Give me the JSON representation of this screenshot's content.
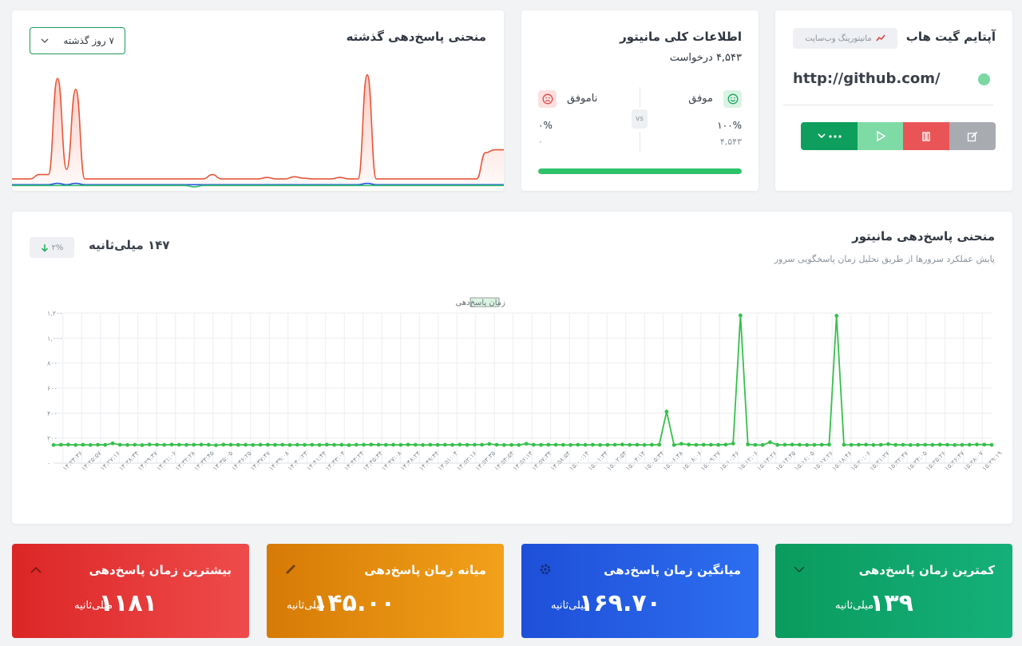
{
  "uptime_card": {
    "title": "آپتایم گیت هاب",
    "type_badge": "مانیتورینگ وب‌سایت",
    "url": "http://github.com/",
    "status_color": "#7bd8a3",
    "icons": {
      "type": "trend-icon",
      "more": "dots-icon",
      "play": "play-icon",
      "pause": "pause-icon",
      "edit": "edit-icon"
    }
  },
  "info_card": {
    "title": "اطلاعات کلی مانیتور",
    "request_count": "۴,۵۴۳ درخواست",
    "success": {
      "label": "موفق",
      "percent": "۱۰۰%",
      "count": "۴,۵۴۳"
    },
    "failure": {
      "label": "ناموفق",
      "percent": "۰%",
      "count": "۰"
    },
    "vs_label": "vs",
    "success_ratio": 1.0
  },
  "curve_card": {
    "title": "منحنی پاسخ‌دهی گذشته",
    "range_select": "۷ روز گذشته"
  },
  "big_chart": {
    "title": "منحنی پاسخ‌دهی مانیتور",
    "subtitle": "پایش عملکرد سرورها از طریق تحلیل زمان پاسخگویی سرور",
    "current_value": "۱۴۷ میلی‌ثانیه",
    "change": "۲%",
    "legend": "زمان پاسخ‌دهی"
  },
  "chart_data": [
    {
      "type": "line",
      "title": "منحنی پاسخ‌دهی مانیتور",
      "legend": "زمان پاسخ‌دهی",
      "ylim": [
        0,
        1200
      ],
      "yticks": [
        "۰",
        "۲۰۰",
        "۴۰۰",
        "۶۰۰",
        "۸۰۰",
        "۱,۰۰۰",
        "۱,۲۰۰"
      ],
      "ytick_values": [
        0,
        200,
        400,
        600,
        800,
        1000,
        1200
      ],
      "x_tick_labels": [
        "۱۴:۲۴:۳۶",
        "۱۴:۲۵:۵۷",
        "۱۴:۲۷:۱۶",
        "۱۴:۲۸:۳۴",
        "۱۴:۲۹:۴۷",
        "۱۴:۳۱:۰۶",
        "۱۴:۳۲:۲۸",
        "۱۴:۳۳:۴۵",
        "۱۴:۳۵:۰۵",
        "۱۴:۳۶:۲۵",
        "۱۴:۳۷:۴۷",
        "۱۴:۳۹:۰۸",
        "۱۴:۴۰:۲۳",
        "۱۴:۴۱:۴۴",
        "۱۴:۴۳:۰۴",
        "۱۴:۴۴:۲۴",
        "۱۴:۴۵:۴۴",
        "۱۴:۴۷:۰۸",
        "۱۴:۴۸:۲۴",
        "۱۴:۴۹:۴۴",
        "۱۴:۵۱:۰۴",
        "۱۴:۵۲:۱۶",
        "۱۴:۵۳:۳۵",
        "۱۴:۵۴:۵۴",
        "۱۴:۵۶:۱۴",
        "۱۴:۵۷:۳۴",
        "۱۴:۵۸:۵۴",
        "۱۵:۰۰:۱۴",
        "۱۵:۰۱:۳۴",
        "۱۵:۰۲:۵۴",
        "۱۵:۰۴:۱۴",
        "۱۵:۰۵:۳۴",
        "۱۵:۰۶:۴۸",
        "۱۵:۰۸:۰۶",
        "۱۵:۰۹:۲۷",
        "۱۵:۱۰:۴۶",
        "۱۵:۱۲:۰۶",
        "۱۵:۱۳:۲۶",
        "۱۵:۱۴:۴۵",
        "۱۵:۱۶:۰۵",
        "۱۵:۱۷:۲۶",
        "۱۵:۱۸:۴۶",
        "۱۵:۲۰:۰۶",
        "۱۵:۲۱:۲۷",
        "۱۵:۲۲:۴۷",
        "۱۵:۲۴:۰۵",
        "۱۵:۲۵:۲۶",
        "۱۵:۲۶:۴۷",
        "۱۵:۲۸:۰۷",
        "۱۵:۲۹:۱۹"
      ],
      "values": [
        145,
        147,
        148,
        145,
        147,
        145,
        147,
        146,
        158,
        147,
        145,
        147,
        144,
        149,
        147,
        146,
        148,
        147,
        146,
        147,
        148,
        147,
        143,
        148,
        147,
        146,
        147,
        145,
        147,
        147,
        146,
        147,
        145,
        147,
        146,
        147,
        145,
        148,
        146,
        147,
        144,
        147,
        147,
        148,
        147,
        146,
        147,
        146,
        148,
        147,
        145,
        147,
        146,
        147,
        146,
        148,
        146,
        147,
        147,
        153,
        147,
        145,
        146,
        145,
        155,
        147,
        146,
        147,
        147,
        146,
        145,
        147,
        146,
        147,
        145,
        146,
        147,
        149,
        146,
        147,
        145,
        147,
        147,
        412,
        145,
        155,
        148,
        146,
        147,
        147,
        146,
        148,
        157,
        1181,
        150,
        146,
        145,
        167,
        146,
        147,
        148,
        147,
        145,
        146,
        147,
        148,
        1178,
        147,
        146,
        147,
        148,
        145,
        147,
        152,
        146,
        147,
        145,
        146,
        147,
        146,
        148,
        147,
        145,
        146,
        147,
        149,
        148,
        146
      ]
    },
    {
      "type": "area",
      "title": "منحنی پاسخ‌دهی گذشته",
      "series": [
        {
          "name": "",
          "color": "#e8563a",
          "values": [
            120,
            120,
            120,
            180,
            180,
            1500,
            250,
            1350,
            120,
            120,
            120,
            120,
            120,
            120,
            120,
            120,
            120,
            120,
            120,
            120,
            120,
            120,
            180,
            120,
            120,
            120,
            120,
            120,
            140,
            120,
            120,
            150,
            130,
            120,
            120,
            120,
            140,
            120,
            120,
            1550,
            120,
            120,
            120,
            120,
            120,
            120,
            120,
            120,
            120,
            120,
            120,
            120,
            480,
            520,
            520
          ]
        },
        {
          "name": "",
          "color": "#2a56e0",
          "values": [
            40,
            40,
            40,
            40,
            40,
            60,
            40,
            60,
            40,
            40,
            40,
            40,
            40,
            40,
            40,
            40,
            40,
            40,
            40,
            40,
            40,
            40,
            40,
            40,
            40,
            40,
            40,
            40,
            40,
            40,
            40,
            40,
            40,
            40,
            40,
            40,
            40,
            40,
            40,
            60,
            40,
            40,
            40,
            40,
            40,
            40,
            40,
            40,
            40,
            40,
            40,
            40,
            40,
            40,
            40
          ]
        },
        {
          "name": "",
          "color": "#2ec26a",
          "values": [
            30,
            30,
            30,
            30,
            30,
            30,
            30,
            30,
            30,
            30,
            30,
            30,
            30,
            30,
            30,
            30,
            30,
            30,
            30,
            30,
            10,
            30,
            30,
            30,
            30,
            30,
            30,
            30,
            30,
            30,
            30,
            30,
            30,
            30,
            30,
            30,
            30,
            30,
            30,
            30,
            30,
            30,
            30,
            30,
            30,
            30,
            30,
            30,
            30,
            30,
            30,
            30,
            30,
            30,
            30
          ]
        }
      ]
    }
  ],
  "stats": {
    "min": {
      "title": "کمترین زمان پاسخ‌دهی",
      "value": "۱۳۹",
      "unit": "میلی‌ثانیه",
      "icon": "chevron-down-icon"
    },
    "avg": {
      "title": "میانگین زمان پاسخ‌دهی",
      "value": "۱۶۹.۷۰",
      "unit": "میلی‌ثانیه",
      "icon": "gear-icon"
    },
    "median": {
      "title": "میانه زمان پاسخ‌دهی",
      "value": "۱۴۵.۰۰",
      "unit": "میلی‌ثانیه",
      "icon": "pencil-icon"
    },
    "max": {
      "title": "بیشترین زمان پاسخ‌دهی",
      "value": "۱۱۸۱",
      "unit": "میلی‌ثانیه",
      "icon": "chevron-up-icon"
    }
  }
}
